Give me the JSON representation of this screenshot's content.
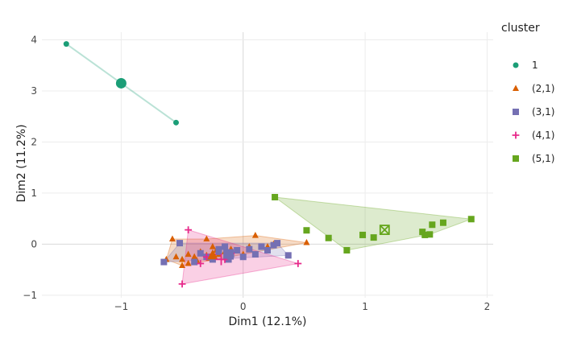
{
  "chart_data": {
    "type": "scatter",
    "xlabel": "Dim1 (12.1%)",
    "ylabel": "Dim2 (11.2%)",
    "xlim": [
      -1.65,
      2.05
    ],
    "ylim": [
      -1.05,
      4.15
    ],
    "xticks": [
      -1,
      0,
      1,
      2
    ],
    "yticks": [
      -1,
      0,
      1,
      2,
      3,
      4
    ],
    "xtick_labels": [
      "−1",
      "0",
      "1",
      "2"
    ],
    "ytick_labels": [
      "−1",
      "0",
      "1",
      "2",
      "3",
      "4"
    ],
    "grid": true,
    "legend": {
      "title": "cluster",
      "placement": "right"
    },
    "series": [
      {
        "name": "1",
        "color": "#1b9e77",
        "marker": "circle",
        "points": [
          [
            -1.45,
            3.92
          ],
          [
            -0.55,
            2.38
          ]
        ],
        "hull": [
          [
            -1.45,
            3.92
          ],
          [
            -0.55,
            2.38
          ]
        ],
        "centroid": [
          -1.0,
          3.15
        ]
      },
      {
        "name": "(2,1)",
        "color": "#d95f02",
        "marker": "triangle",
        "points": [
          [
            0.52,
            0.03
          ],
          [
            0.1,
            0.17
          ],
          [
            -0.3,
            0.1
          ],
          [
            -0.58,
            0.1
          ],
          [
            -0.63,
            -0.3
          ],
          [
            -0.5,
            -0.42
          ],
          [
            -0.45,
            -0.38
          ],
          [
            -0.5,
            -0.3
          ],
          [
            -0.4,
            -0.25
          ],
          [
            -0.35,
            -0.15
          ],
          [
            -0.3,
            -0.22
          ],
          [
            -0.25,
            -0.05
          ],
          [
            -0.2,
            -0.2
          ],
          [
            -0.15,
            -0.15
          ],
          [
            -0.1,
            -0.1
          ],
          [
            0.0,
            -0.2
          ],
          [
            0.05,
            -0.05
          ],
          [
            0.2,
            -0.05
          ],
          [
            0.25,
            0.0
          ],
          [
            -0.45,
            -0.2
          ],
          [
            -0.38,
            -0.32
          ],
          [
            -0.28,
            -0.28
          ],
          [
            -0.22,
            -0.12
          ],
          [
            -0.55,
            -0.25
          ]
        ],
        "hull": [
          [
            -0.63,
            -0.3
          ],
          [
            -0.58,
            0.1
          ],
          [
            -0.3,
            0.1
          ],
          [
            0.1,
            0.17
          ],
          [
            0.52,
            0.03
          ],
          [
            -0.5,
            -0.42
          ]
        ],
        "centroid": [
          -0.25,
          -0.22
        ]
      },
      {
        "name": "(3,1)",
        "color": "#7570b3",
        "marker": "square",
        "points": [
          [
            -0.65,
            -0.35
          ],
          [
            -0.52,
            0.02
          ],
          [
            0.28,
            0.02
          ],
          [
            0.37,
            -0.22
          ],
          [
            -0.35,
            -0.18
          ],
          [
            -0.3,
            -0.25
          ],
          [
            -0.2,
            -0.1
          ],
          [
            -0.15,
            -0.05
          ],
          [
            -0.1,
            -0.2
          ],
          [
            -0.05,
            -0.12
          ],
          [
            0.0,
            -0.25
          ],
          [
            0.15,
            -0.05
          ],
          [
            0.2,
            -0.12
          ],
          [
            0.25,
            -0.02
          ],
          [
            -0.25,
            -0.3
          ],
          [
            -0.4,
            -0.35
          ],
          [
            -0.12,
            -0.3
          ],
          [
            0.05,
            -0.1
          ],
          [
            -0.2,
            -0.15
          ],
          [
            0.1,
            -0.2
          ]
        ],
        "hull": [
          [
            -0.65,
            -0.35
          ],
          [
            -0.52,
            0.02
          ],
          [
            0.28,
            0.02
          ],
          [
            0.37,
            -0.22
          ]
        ],
        "centroid": [
          -0.12,
          -0.2
        ]
      },
      {
        "name": "(4,1)",
        "color": "#e7298a",
        "marker": "plus",
        "points": [
          [
            -0.45,
            0.28
          ],
          [
            -0.5,
            -0.78
          ],
          [
            0.45,
            -0.38
          ],
          [
            -0.3,
            -0.25
          ],
          [
            -0.35,
            -0.38
          ],
          [
            -0.25,
            -0.2
          ],
          [
            -0.15,
            -0.3
          ],
          [
            -0.1,
            -0.18
          ]
        ],
        "hull": [
          [
            -0.45,
            0.28
          ],
          [
            0.45,
            -0.38
          ],
          [
            -0.5,
            -0.78
          ]
        ],
        "centroid": [
          -0.18,
          -0.3
        ]
      },
      {
        "name": "(5,1)",
        "color": "#66a61e",
        "marker": "square",
        "points": [
          [
            0.26,
            0.92
          ],
          [
            0.52,
            0.27
          ],
          [
            0.7,
            0.12
          ],
          [
            0.85,
            -0.12
          ],
          [
            0.98,
            0.18
          ],
          [
            1.07,
            0.13
          ],
          [
            1.47,
            0.24
          ],
          [
            1.49,
            0.18
          ],
          [
            1.53,
            0.19
          ],
          [
            1.55,
            0.38
          ],
          [
            1.64,
            0.42
          ],
          [
            1.87,
            0.49
          ]
        ],
        "hull": [
          [
            0.26,
            0.92
          ],
          [
            1.87,
            0.49
          ],
          [
            1.53,
            0.19
          ],
          [
            0.85,
            -0.12
          ]
        ],
        "centroid": [
          1.16,
          0.28
        ]
      }
    ]
  }
}
